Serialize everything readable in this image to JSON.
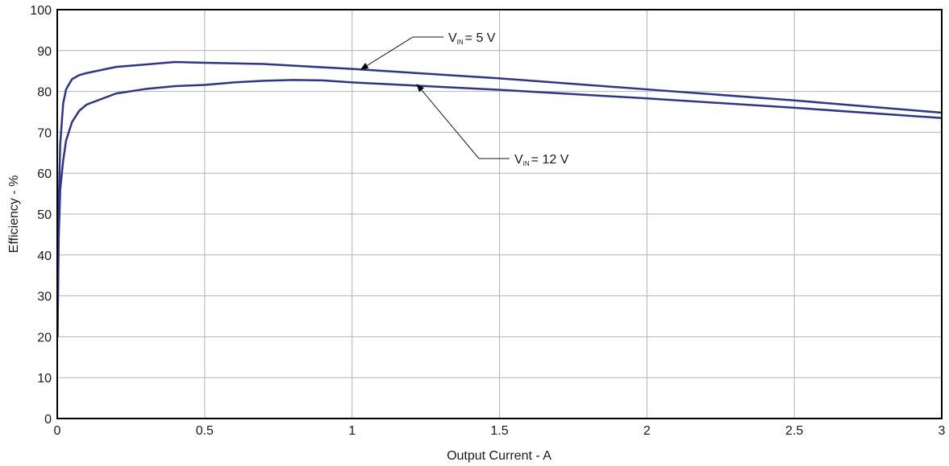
{
  "chart_data": {
    "type": "line",
    "title": "",
    "xlabel": "Output Current - A",
    "ylabel": "Efficiency - %",
    "xlim": [
      0,
      3
    ],
    "ylim": [
      0,
      100
    ],
    "xticks": [
      "0",
      "0.5",
      "1",
      "1.5",
      "2",
      "2.5",
      "3"
    ],
    "yticks": [
      "0",
      "10",
      "20",
      "30",
      "40",
      "50",
      "60",
      "70",
      "80",
      "90",
      "100"
    ],
    "grid": true,
    "series": [
      {
        "name": "VIN = 5 V",
        "color": "#2b3590",
        "x": [
          0.001,
          0.005,
          0.01,
          0.02,
          0.03,
          0.05,
          0.075,
          0.1,
          0.2,
          0.3,
          0.4,
          0.5,
          0.7,
          1.0,
          1.5,
          2.0,
          2.5,
          3.0
        ],
        "y": [
          20,
          52,
          67,
          77,
          80.5,
          83,
          84,
          84.5,
          86,
          86.6,
          87.2,
          87,
          86.7,
          85.5,
          83.2,
          80.5,
          77.8,
          74.8
        ]
      },
      {
        "name": "VIN = 12 V",
        "color": "#2b3590",
        "x": [
          0.001,
          0.005,
          0.01,
          0.02,
          0.03,
          0.05,
          0.075,
          0.1,
          0.2,
          0.3,
          0.4,
          0.5,
          0.6,
          0.7,
          0.8,
          0.9,
          1.0,
          1.5,
          2.0,
          2.5,
          3.0
        ],
        "y": [
          20,
          44,
          56,
          63,
          68,
          72.5,
          75.3,
          76.8,
          79.5,
          80.6,
          81.3,
          81.6,
          82.2,
          82.6,
          82.8,
          82.7,
          82.2,
          80.4,
          78.3,
          76,
          73.5
        ]
      }
    ],
    "annotations": [
      {
        "main": "V",
        "sub": "IN",
        "rest": "= 5 V",
        "target_x": 1.03,
        "target_y": 85.4
      },
      {
        "main": "V",
        "sub": "IN",
        "rest": "= 12 V",
        "target_x": 1.22,
        "target_y": 81.7
      }
    ]
  }
}
